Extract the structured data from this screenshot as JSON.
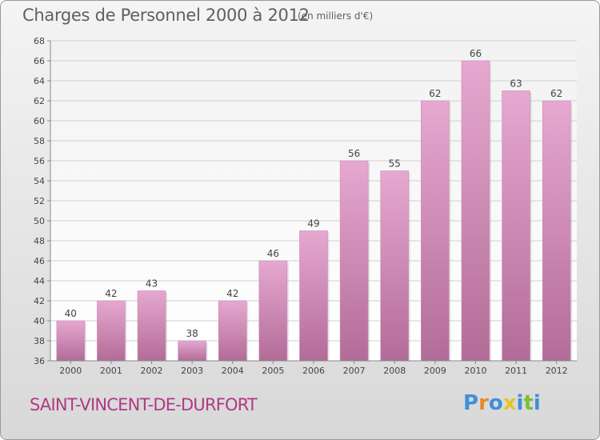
{
  "header": {
    "title": "Charges de Personnel 2000 à 2012",
    "subtitle": "(en milliers d'€)"
  },
  "footer": {
    "place_name": "SAINT-VINCENT-DE-DURFORT",
    "logo_text": "Proxiti"
  },
  "colors": {
    "bar_top": "#e6a8d0",
    "bar_bottom": "#b26c98",
    "place": "#b03a84",
    "logo": [
      "#3f8fd8",
      "#e8892c",
      "#3f8fd8",
      "#e3c52a",
      "#3f8fd8",
      "#7bbf3a",
      "#3f8fd8"
    ]
  },
  "chart_data": {
    "type": "bar",
    "categories": [
      "2000",
      "2001",
      "2002",
      "2003",
      "2004",
      "2005",
      "2006",
      "2007",
      "2008",
      "2009",
      "2010",
      "2011",
      "2012"
    ],
    "values": [
      40,
      42,
      43,
      38,
      42,
      46,
      49,
      56,
      55,
      62,
      66,
      63,
      62
    ],
    "title": "Charges de Personnel 2000 à 2012",
    "ylabel": "",
    "xlabel": "",
    "ylim": [
      36,
      68
    ],
    "yticks": [
      36,
      38,
      40,
      42,
      44,
      46,
      48,
      50,
      52,
      54,
      56,
      58,
      60,
      62,
      64,
      66,
      68
    ],
    "grid": true,
    "data_labels": true
  }
}
